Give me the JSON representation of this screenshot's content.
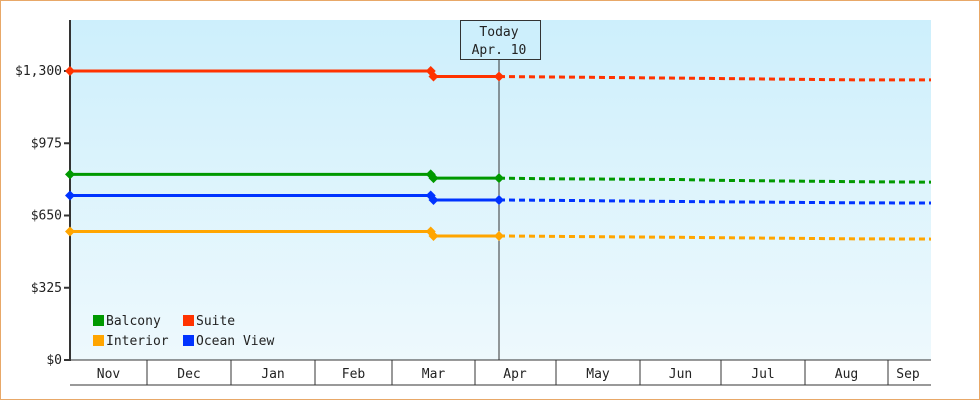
{
  "chart_data": {
    "type": "line",
    "title": "",
    "xlabel": "",
    "ylabel": "",
    "ylim": [
      0,
      1530
    ],
    "y_ticks": [
      "$0",
      "$325",
      "$650",
      "$975",
      "$1,300"
    ],
    "y_tick_values": [
      0,
      325,
      650,
      975,
      1300
    ],
    "categories": [
      "Nov",
      "Dec",
      "Jan",
      "Feb",
      "Mar",
      "Apr",
      "May",
      "Jun",
      "Jul",
      "Aug",
      "Sep"
    ],
    "today_marker": {
      "line1": "Today",
      "line2": "Apr. 10"
    },
    "legend": [
      "Balcony",
      "Suite",
      "Interior",
      "Ocean View"
    ],
    "legend_position": "lower-left inside plot",
    "grid": false,
    "series": [
      {
        "name": "Suite",
        "color": "#ff3300",
        "historical": [
          [
            "Nov 1",
            1300
          ],
          [
            "Mar 15",
            1300
          ],
          [
            "Mar 16",
            1275
          ],
          [
            "Apr 10",
            1275
          ]
        ],
        "forecast": [
          [
            "Apr 10",
            1275
          ],
          [
            "May 1",
            1273
          ],
          [
            "Jun 15",
            1268
          ],
          [
            "Aug 20",
            1260
          ],
          [
            "Sep 15",
            1260
          ]
        ]
      },
      {
        "name": "Balcony",
        "color": "#009900",
        "historical": [
          [
            "Nov 1",
            835
          ],
          [
            "Mar 15",
            835
          ],
          [
            "Mar 16",
            818
          ],
          [
            "Apr 10",
            818
          ]
        ],
        "forecast": [
          [
            "Apr 10",
            818
          ],
          [
            "May 1",
            815
          ],
          [
            "Jun 15",
            812
          ],
          [
            "Jul 1",
            808
          ],
          [
            "Aug 20",
            802
          ],
          [
            "Sep 15",
            800
          ]
        ]
      },
      {
        "name": "Ocean View",
        "color": "#0033ff",
        "historical": [
          [
            "Nov 1",
            740
          ],
          [
            "Mar 15",
            740
          ],
          [
            "Mar 16",
            720
          ],
          [
            "Apr 10",
            720
          ]
        ],
        "forecast": [
          [
            "Apr 10",
            720
          ],
          [
            "May 1",
            718
          ],
          [
            "Jun 15",
            713
          ],
          [
            "Aug 20",
            707
          ],
          [
            "Sep 15",
            706
          ]
        ]
      },
      {
        "name": "Interior",
        "color": "#ffa500",
        "historical": [
          [
            "Nov 1",
            578
          ],
          [
            "Mar 15",
            578
          ],
          [
            "Mar 16",
            558
          ],
          [
            "Apr 10",
            558
          ]
        ],
        "forecast": [
          [
            "Apr 10",
            558
          ],
          [
            "May 1",
            556
          ],
          [
            "Jun 15",
            552
          ],
          [
            "Jul 1",
            550
          ],
          [
            "Aug 20",
            545
          ],
          [
            "Sep 15",
            544
          ]
        ]
      }
    ]
  },
  "ui": {
    "colors": {
      "border": "#e8a868",
      "plot_top": "#cdeffc",
      "plot_bottom": "#eef9fd",
      "axis": "#333333"
    }
  }
}
